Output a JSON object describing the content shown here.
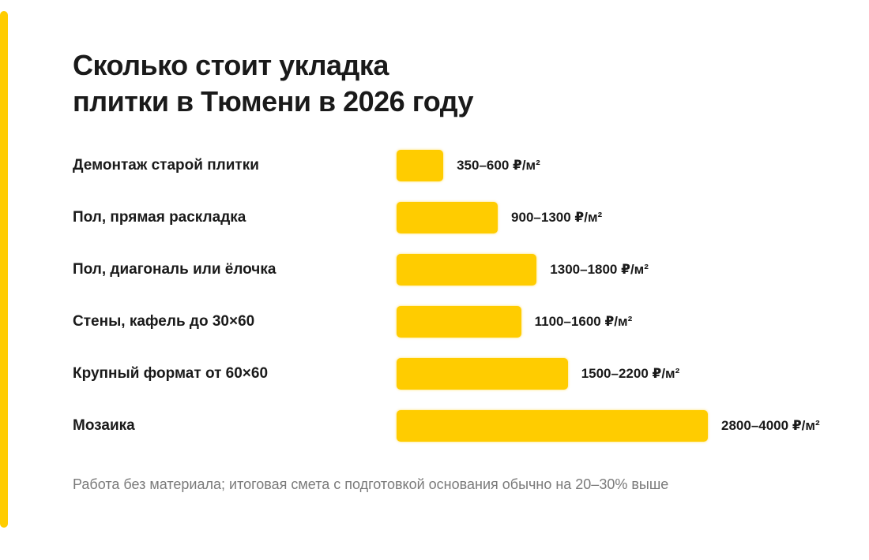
{
  "colors": {
    "accent": "#ffcc00",
    "text": "#1a1a1a",
    "muted": "#7a7a7a"
  },
  "title": {
    "line1": "Сколько стоит укладка",
    "line2": "плитки в Тюмени в 2026 году"
  },
  "footnote": "Работа без материала; итоговая смета с подготовкой основания обычно на 20–30% выше",
  "chart_data": {
    "type": "bar",
    "orientation": "horizontal",
    "unit": "₽/м²",
    "categories": [
      "Демонтаж старой плитки",
      "Пол, прямая раскладка",
      "Пол, диагональ или ёлочка",
      "Стены, кафель до 30×60",
      "Крупный формат от 60×60",
      "Мозаика"
    ],
    "ranges": [
      [
        350,
        600
      ],
      [
        900,
        1300
      ],
      [
        1300,
        1800
      ],
      [
        1100,
        1600
      ],
      [
        1500,
        2200
      ],
      [
        2800,
        4000
      ]
    ],
    "value_labels": [
      "350–600 ₽/м²",
      "900–1300 ₽/м²",
      "1300–1800 ₽/м²",
      "1100–1600 ₽/м²",
      "1500–2200 ₽/м²",
      "2800–4000 ₽/м²"
    ],
    "bar_value": "upper",
    "xlim": [
      0,
      4000
    ],
    "grid": false,
    "legend": "none"
  }
}
